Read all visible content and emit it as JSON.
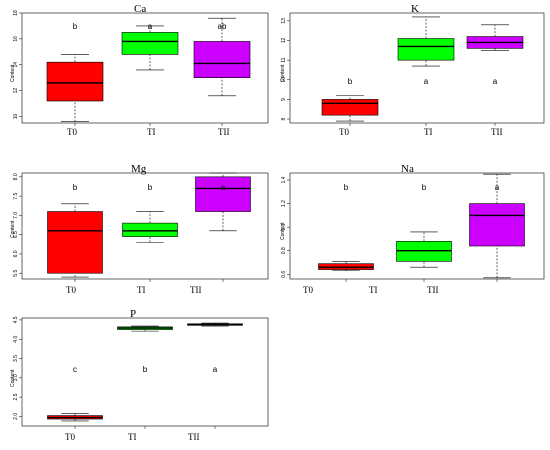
{
  "chart_data": [
    {
      "type": "box",
      "title": "Ca",
      "ylabel": "Content",
      "categories": [
        "T0",
        "TI",
        "TII"
      ],
      "ylim": [
        9.5,
        18
      ],
      "yticks": [
        10,
        12,
        14,
        16,
        18
      ],
      "ytick_labels": [
        "10",
        "12",
        "14",
        "16",
        "18"
      ],
      "boxes": [
        {
          "category": "T0",
          "min": 9.6,
          "q1": 11.2,
          "median": 12.6,
          "q3": 14.2,
          "max": 14.8,
          "color": "#ff0000",
          "letter": "b"
        },
        {
          "category": "TI",
          "min": 13.6,
          "q1": 14.8,
          "median": 15.8,
          "q3": 16.5,
          "max": 17.0,
          "color": "#00ff00",
          "letter": "a"
        },
        {
          "category": "TII",
          "min": 11.6,
          "q1": 13.0,
          "median": 14.1,
          "q3": 15.8,
          "max": 17.6,
          "color": "#cc00ff",
          "letter": "ab"
        }
      ]
    },
    {
      "type": "box",
      "title": "K",
      "ylabel": "Content",
      "categories": [
        "T0",
        "TI",
        "TII"
      ],
      "ylim": [
        7.8,
        13.4
      ],
      "yticks": [
        8,
        9,
        10,
        11,
        12,
        13
      ],
      "ytick_labels": [
        "8",
        "9",
        "10",
        "11",
        "12",
        "13"
      ],
      "boxes": [
        {
          "category": "T0",
          "min": 7.9,
          "q1": 8.2,
          "median": 8.8,
          "q3": 9.0,
          "max": 9.2,
          "color": "#ff0000",
          "letter": "b"
        },
        {
          "category": "TI",
          "min": 10.7,
          "q1": 11.0,
          "median": 11.7,
          "q3": 12.1,
          "max": 13.2,
          "color": "#00ff00",
          "letter": "a"
        },
        {
          "category": "TII",
          "min": 11.5,
          "q1": 11.6,
          "median": 11.9,
          "q3": 12.2,
          "max": 12.8,
          "color": "#cc00ff",
          "letter": "a"
        }
      ]
    },
    {
      "type": "box",
      "title": "Mg",
      "ylabel": "Content",
      "categories": [
        "T0",
        "TI",
        "TII"
      ],
      "ylim": [
        5.35,
        8.1
      ],
      "yticks": [
        5.5,
        6.0,
        6.5,
        7.0,
        7.5,
        8.0
      ],
      "ytick_labels": [
        "5.5",
        "6.0",
        "6.5",
        "7.0",
        "7.5",
        "8.0"
      ],
      "boxes": [
        {
          "category": "T0",
          "min": 5.4,
          "q1": 5.5,
          "median": 6.6,
          "q3": 7.1,
          "max": 7.3,
          "color": "#ff0000",
          "letter": "b"
        },
        {
          "category": "TI",
          "min": 6.3,
          "q1": 6.45,
          "median": 6.6,
          "q3": 6.8,
          "max": 7.1,
          "color": "#00ff00",
          "letter": "b"
        },
        {
          "category": "TII",
          "min": 6.6,
          "q1": 7.1,
          "median": 7.7,
          "q3": 8.0,
          "max": 8.1,
          "color": "#cc00ff",
          "letter": "a"
        }
      ]
    },
    {
      "type": "box",
      "title": "Na",
      "ylabel": "Content",
      "categories": [
        "T0",
        "TI",
        "TII"
      ],
      "ylim": [
        0.56,
        1.46
      ],
      "yticks": [
        0.6,
        0.8,
        1.0,
        1.2,
        1.4
      ],
      "ytick_labels": [
        "0.6",
        "0.8",
        "1.0",
        "1.2",
        "1.4"
      ],
      "boxes": [
        {
          "category": "T0",
          "min": 0.63,
          "q1": 0.64,
          "median": 0.66,
          "q3": 0.69,
          "max": 0.71,
          "color": "#ff0000",
          "letter": "b"
        },
        {
          "category": "TI",
          "min": 0.66,
          "q1": 0.71,
          "median": 0.8,
          "q3": 0.88,
          "max": 0.96,
          "color": "#00ff00",
          "letter": "b"
        },
        {
          "category": "TII",
          "min": 0.57,
          "q1": 0.84,
          "median": 1.1,
          "q3": 1.2,
          "max": 1.45,
          "color": "#cc00ff",
          "letter": "a"
        }
      ],
      "x_labels_printed": [
        "T0",
        "TI",
        "TII"
      ]
    },
    {
      "type": "box",
      "title": "P",
      "ylabel": "Content",
      "categories": [
        "T0",
        "TI",
        "TII"
      ],
      "ylim": [
        1.75,
        4.55
      ],
      "yticks": [
        2.0,
        2.5,
        3.0,
        3.5,
        4.0,
        4.5
      ],
      "ytick_labels": [
        "2.0",
        "2.5",
        "3.0",
        "3.5",
        "4.0",
        "4.5"
      ],
      "boxes": [
        {
          "category": "T0",
          "min": 1.88,
          "q1": 1.93,
          "median": 1.97,
          "q3": 2.02,
          "max": 2.08,
          "color": "#ff0000",
          "letter": "c"
        },
        {
          "category": "TI",
          "min": 4.21,
          "q1": 4.25,
          "median": 4.29,
          "q3": 4.32,
          "max": 4.34,
          "color": "#00ff00",
          "letter": "b"
        },
        {
          "category": "TII",
          "min": 4.34,
          "q1": 4.36,
          "median": 4.38,
          "q3": 4.4,
          "max": 4.42,
          "color": "#cc00ff",
          "letter": "a"
        }
      ]
    }
  ]
}
